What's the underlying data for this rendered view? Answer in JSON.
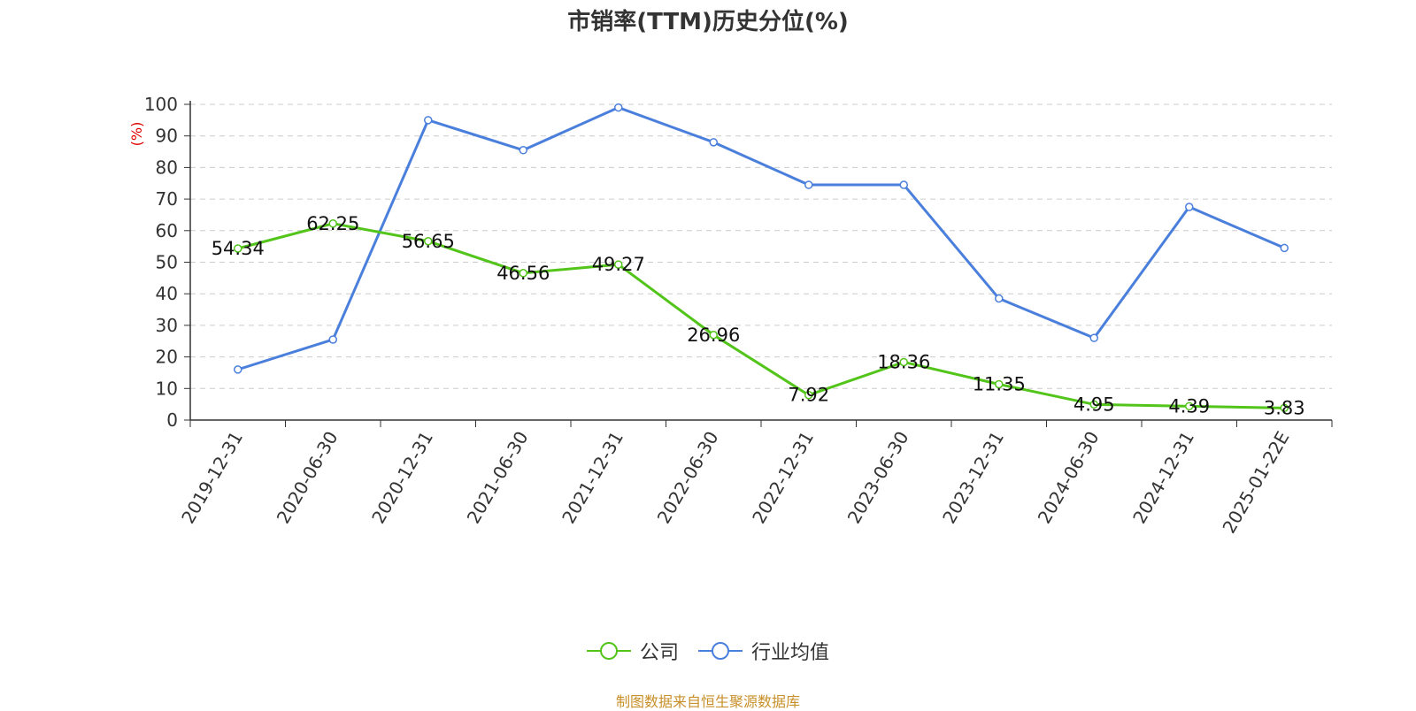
{
  "chart_data": {
    "type": "line",
    "title": "市销率(TTM)历史分位(%)",
    "ylabel": "(%)",
    "ylim": [
      0,
      100
    ],
    "yticks": [
      0,
      10,
      20,
      30,
      40,
      50,
      60,
      70,
      80,
      90,
      100
    ],
    "grid": true,
    "legend_position": "bottom",
    "categories": [
      "2019-12-31",
      "2020-06-30",
      "2020-12-31",
      "2021-06-30",
      "2021-12-31",
      "2022-06-30",
      "2022-12-31",
      "2023-06-30",
      "2023-12-31",
      "2024-06-30",
      "2024-12-31",
      "2025-01-22E"
    ],
    "series": [
      {
        "name": "公司",
        "color": "#52c41a",
        "show_labels": true,
        "values": [
          54.34,
          62.25,
          56.65,
          46.56,
          49.27,
          26.96,
          7.92,
          18.36,
          11.35,
          4.95,
          4.39,
          3.83
        ]
      },
      {
        "name": "行业均值",
        "color": "#4a7fdc",
        "show_labels": false,
        "values": [
          16,
          25.5,
          95,
          85.5,
          99,
          88,
          74.5,
          74.5,
          38.5,
          26,
          67.5,
          54.5
        ]
      }
    ]
  },
  "source_note": "制图数据来自恒生聚源数据库"
}
